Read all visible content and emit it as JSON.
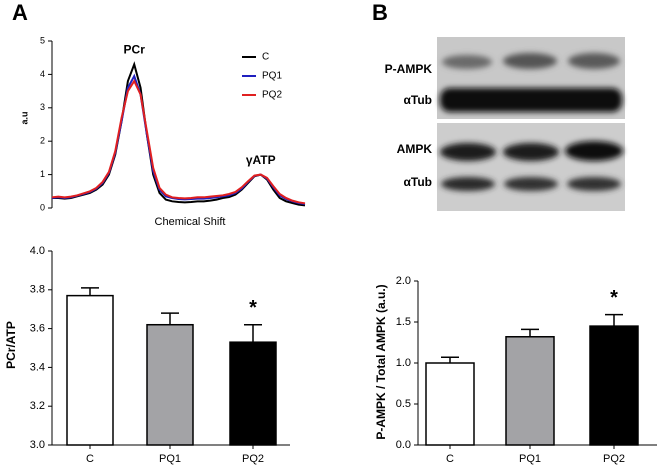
{
  "panels": [
    "A",
    "B"
  ],
  "blot": {
    "labels": [
      "P-AMPK",
      "αTub",
      "AMPK",
      "αTub"
    ]
  },
  "chart_data": [
    {
      "type": "line",
      "x_label": "Chemical Shift",
      "y_label": "a.u",
      "annotations": [
        "PCr",
        "γATP"
      ],
      "x": [
        0,
        1,
        2,
        3,
        4,
        5,
        6,
        7,
        8,
        9,
        10,
        11,
        12,
        13,
        14,
        15,
        16,
        17,
        18,
        19,
        20,
        21,
        22,
        23,
        24,
        25,
        26,
        27,
        28,
        29,
        30,
        31,
        32,
        33,
        34,
        35,
        36,
        37,
        38,
        39,
        40
      ],
      "xlim": [
        0,
        40
      ],
      "ylim": [
        0,
        5
      ],
      "yticks": [
        0,
        1,
        2,
        3,
        4,
        5
      ],
      "series": [
        {
          "name": "C",
          "color": "#000000",
          "values": [
            0.3,
            0.3,
            0.28,
            0.3,
            0.35,
            0.4,
            0.45,
            0.55,
            0.7,
            1.0,
            1.6,
            2.6,
            3.8,
            4.3,
            3.6,
            2.2,
            1.0,
            0.45,
            0.25,
            0.2,
            0.18,
            0.17,
            0.18,
            0.2,
            0.2,
            0.22,
            0.25,
            0.3,
            0.33,
            0.4,
            0.55,
            0.75,
            0.95,
            1.0,
            0.85,
            0.55,
            0.3,
            0.2,
            0.15,
            0.1,
            0.08
          ]
        },
        {
          "name": "PQ1",
          "color": "#1f1fbf",
          "values": [
            0.3,
            0.32,
            0.3,
            0.32,
            0.37,
            0.42,
            0.48,
            0.58,
            0.75,
            1.05,
            1.65,
            2.6,
            3.6,
            3.95,
            3.4,
            2.2,
            1.1,
            0.55,
            0.35,
            0.3,
            0.27,
            0.26,
            0.27,
            0.28,
            0.28,
            0.3,
            0.32,
            0.35,
            0.38,
            0.45,
            0.58,
            0.78,
            0.96,
            1.0,
            0.88,
            0.62,
            0.38,
            0.27,
            0.2,
            0.15,
            0.12
          ]
        },
        {
          "name": "PQ2",
          "color": "#e02020",
          "values": [
            0.32,
            0.34,
            0.32,
            0.34,
            0.38,
            0.44,
            0.5,
            0.6,
            0.78,
            1.08,
            1.7,
            2.7,
            3.5,
            3.8,
            3.4,
            2.3,
            1.2,
            0.6,
            0.4,
            0.32,
            0.3,
            0.29,
            0.3,
            0.32,
            0.32,
            0.34,
            0.36,
            0.38,
            0.42,
            0.48,
            0.62,
            0.8,
            0.97,
            1.0,
            0.9,
            0.65,
            0.42,
            0.3,
            0.22,
            0.17,
            0.14
          ]
        }
      ]
    },
    {
      "type": "bar",
      "y_label": "PCr/ATP",
      "annotation": "*",
      "categories": [
        "C",
        "PQ1",
        "PQ2"
      ],
      "values": [
        3.77,
        3.62,
        3.53
      ],
      "errors": [
        0.04,
        0.06,
        0.09
      ],
      "colors": [
        "#ffffff",
        "#a3a3a6",
        "#000000"
      ],
      "ylim": [
        3.0,
        4.0
      ],
      "yticks": [
        {
          "value": 3.0,
          "label": "3.0"
        },
        {
          "value": 3.2,
          "label": "3.2"
        },
        {
          "value": 3.4,
          "label": "3.4"
        },
        {
          "value": 3.6,
          "label": "3.6"
        },
        {
          "value": 3.8,
          "label": "3.8"
        },
        {
          "value": 4.0,
          "label": "4.0"
        }
      ]
    },
    {
      "type": "bar",
      "y_label": "P-AMPK / Total  AMPK (a.u.)",
      "annotation": "*",
      "categories": [
        "C",
        "PQ1",
        "PQ2"
      ],
      "values": [
        1.0,
        1.32,
        1.45
      ],
      "errors": [
        0.07,
        0.09,
        0.14
      ],
      "colors": [
        "#ffffff",
        "#a3a3a6",
        "#000000"
      ],
      "ylim": [
        0,
        2.0
      ],
      "yticks": [
        {
          "value": 0,
          "label": "0.0"
        },
        {
          "value": 0.5,
          "label": "0.5"
        },
        {
          "value": 1.0,
          "label": "1.0"
        },
        {
          "value": 1.5,
          "label": "1.5"
        },
        {
          "value": 2.0,
          "label": "2.0"
        }
      ]
    }
  ]
}
